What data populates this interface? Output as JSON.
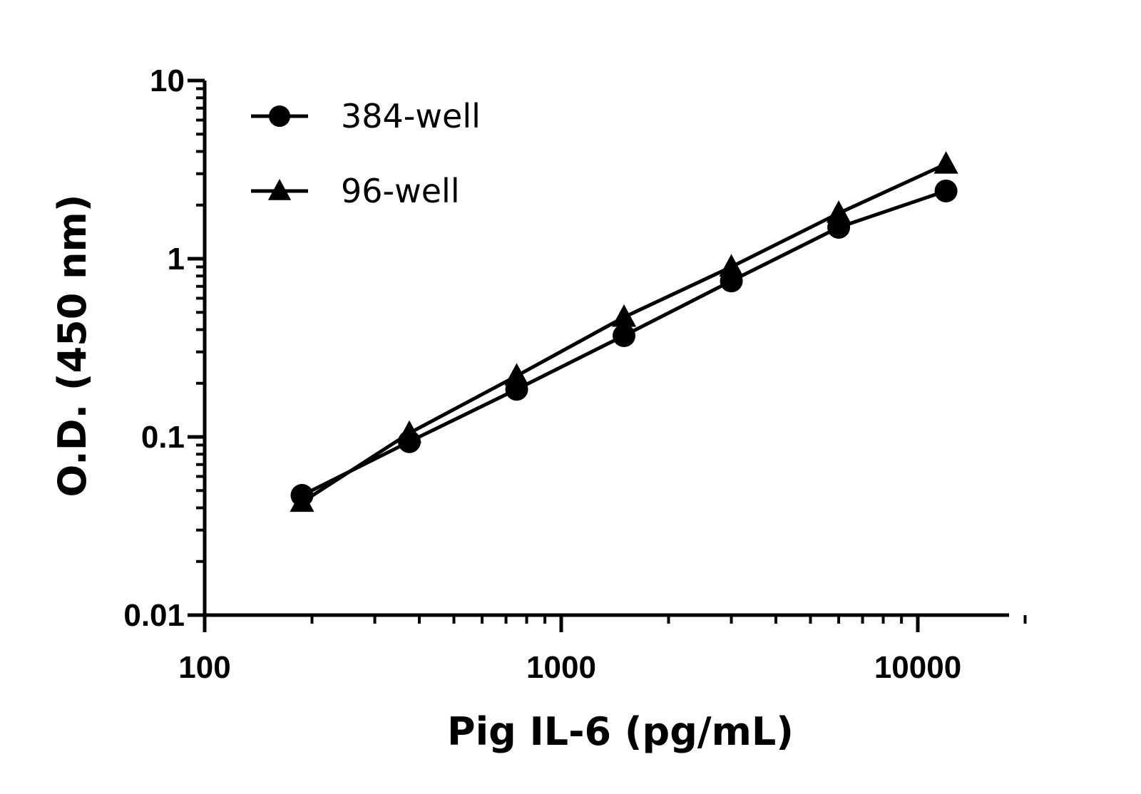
{
  "chart_data": {
    "type": "line",
    "xlabel": "Pig IL-6 (pg/mL)",
    "ylabel": "O.D. (450 nm)",
    "x_scale": "log",
    "y_scale": "log",
    "xlim": [
      100,
      20000
    ],
    "ylim": [
      0.01,
      10
    ],
    "x_ticks": [
      100,
      1000,
      10000
    ],
    "x_tick_labels": [
      "100",
      "1000",
      "10000"
    ],
    "y_ticks": [
      0.01,
      0.1,
      1,
      10
    ],
    "y_tick_labels": [
      "0.01",
      "0.1",
      "1",
      "10"
    ],
    "grid": false,
    "legend_position": "top-left",
    "series": [
      {
        "name": "384-well",
        "marker": "circle",
        "x": [
          187.5,
          375,
          750,
          1500,
          3000,
          6000,
          12000
        ],
        "y": [
          0.047,
          0.094,
          0.185,
          0.37,
          0.75,
          1.5,
          2.4
        ]
      },
      {
        "name": "96-well",
        "marker": "triangle",
        "x": [
          187.5,
          375,
          750,
          1500,
          3000,
          6000,
          12000
        ],
        "y": [
          0.043,
          0.105,
          0.22,
          0.47,
          0.9,
          1.8,
          3.4
        ]
      }
    ]
  }
}
